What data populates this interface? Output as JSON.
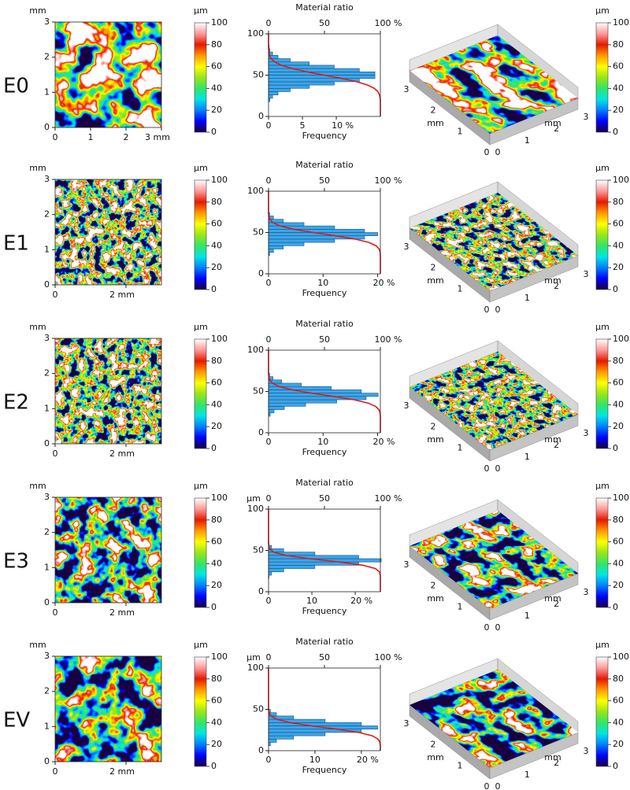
{
  "units": {
    "length": "mm",
    "height": "µm"
  },
  "map_xlim": [
    0,
    3
  ],
  "map_ylim": [
    0,
    3
  ],
  "map_yticks": [
    0,
    1,
    2,
    3
  ],
  "colorbar_lim": [
    0,
    100
  ],
  "colorbar_ticks": [
    0,
    20,
    40,
    60,
    80,
    100
  ],
  "material_ratio": {
    "title": "Material ratio",
    "lim": [
      0,
      100
    ],
    "ticks": [
      0,
      50,
      {
        "value": 100,
        "label": "100 %"
      }
    ]
  },
  "hist_ylim": [
    0,
    100
  ],
  "hist_yticks": [
    0,
    50,
    100
  ],
  "frequency_label": "Frequency",
  "view3d_ticks": [
    0,
    1,
    2,
    3
  ],
  "rows": [
    {
      "label": "E0",
      "map_xticks": [
        0,
        1,
        2,
        {
          "value": 3,
          "label": "3 mm"
        }
      ],
      "hist_unit": false,
      "hist": {
        "xlim": [
          0,
          16.5
        ],
        "xticks": [
          0,
          5,
          {
            "value": 10,
            "label": "10 %"
          }
        ],
        "bins": [
          18,
          22,
          26,
          30,
          34,
          38,
          42,
          46,
          50,
          54,
          58,
          62,
          66,
          70,
          74,
          78,
          82,
          86
        ],
        "counts": [
          0.2,
          0.6,
          1.4,
          3.2,
          6.0,
          9.7,
          13.4,
          15.7,
          15.7,
          13.4,
          9.7,
          6.0,
          3.2,
          1.4,
          0.6,
          0.2,
          0.1
        ]
      }
    },
    {
      "label": "E1",
      "map_xticks": [
        0,
        {
          "value": 2,
          "label": "2 mm"
        }
      ],
      "hist_unit": false,
      "hist": {
        "xlim": [
          0,
          20.5
        ],
        "xticks": [
          0,
          10,
          {
            "value": 20,
            "label": "20 %"
          }
        ],
        "bins": [
          22,
          26,
          30,
          34,
          38,
          42,
          46,
          50,
          54,
          58,
          62,
          66,
          70,
          74
        ],
        "counts": [
          0.2,
          0.9,
          2.7,
          6.5,
          12.1,
          17.6,
          20,
          17.6,
          12.1,
          6.5,
          2.7,
          0.9,
          0.2
        ]
      }
    },
    {
      "label": "E2",
      "map_xticks": [
        0,
        {
          "value": 2,
          "label": "2 mm"
        }
      ],
      "hist_unit": false,
      "hist": {
        "xlim": [
          0,
          20.5
        ],
        "xticks": [
          0,
          10,
          {
            "value": 20,
            "label": "20 %"
          }
        ],
        "bins": [
          20,
          24,
          28,
          32,
          36,
          40,
          44,
          48,
          52,
          56,
          60,
          64,
          68,
          72
        ],
        "counts": [
          0.3,
          1.0,
          2.9,
          6.8,
          12.5,
          17.9,
          20.1,
          17.0,
          11.5,
          6.0,
          2.4,
          0.8,
          0.2
        ]
      }
    },
    {
      "label": "E3",
      "map_xticks": [
        0,
        {
          "value": 2,
          "label": "2 mm"
        }
      ],
      "hist_unit": true,
      "hist": {
        "xlim": [
          0,
          25.8
        ],
        "xticks": [
          0,
          10,
          {
            "value": 20,
            "label": "20 %"
          }
        ],
        "bins": [
          16,
          20,
          24,
          28,
          32,
          36,
          40,
          44,
          48,
          52,
          56,
          60
        ],
        "counts": [
          0.1,
          0.7,
          3.5,
          10.7,
          20.8,
          26,
          20.8,
          10.7,
          3.5,
          0.7,
          0.1
        ]
      }
    },
    {
      "label": "EV",
      "map_xticks": [
        0,
        {
          "value": 2,
          "label": "2 mm"
        }
      ],
      "hist_unit": true,
      "hist": {
        "xlim": [
          0,
          24.1
        ],
        "xticks": [
          0,
          10,
          {
            "value": 20,
            "label": "20 %"
          }
        ],
        "bins": [
          6,
          10,
          14,
          18,
          22,
          26,
          30,
          34,
          38,
          42,
          46,
          50
        ],
        "counts": [
          0.4,
          1.7,
          5.4,
          12.2,
          20,
          23.5,
          20,
          12.2,
          5.4,
          1.7,
          0.4
        ]
      }
    }
  ]
}
